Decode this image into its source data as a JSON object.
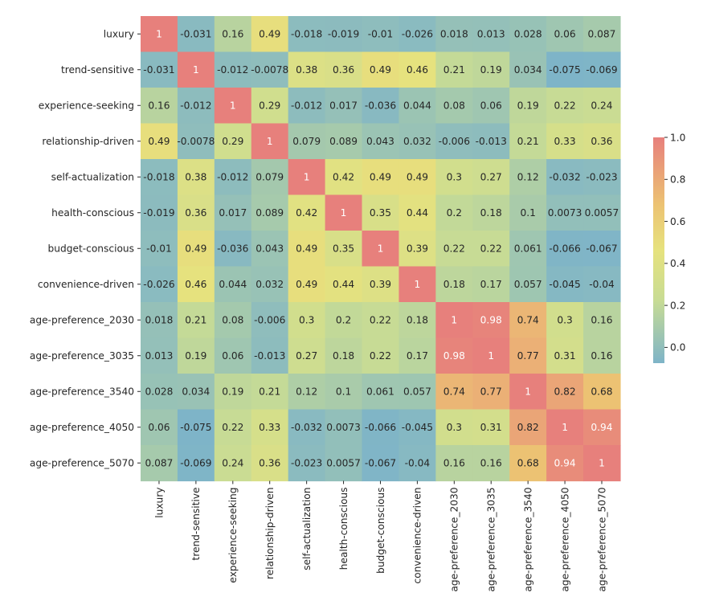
{
  "chart_data": {
    "type": "heatmap",
    "title": "",
    "xlabel": "",
    "ylabel": "",
    "rows": [
      "luxury",
      "trend-sensitive",
      "experience-seeking",
      "relationship-driven",
      "self-actualization",
      "health-conscious",
      "budget-conscious",
      "convenience-driven",
      "age-preference_2030",
      "age-preference_3035",
      "age-preference_3540",
      "age-preference_4050",
      "age-preference_5070"
    ],
    "columns": [
      "luxury",
      "trend-sensitive",
      "experience-seeking",
      "relationship-driven",
      "self-actualization",
      "health-conscious",
      "budget-conscious",
      "convenience-driven",
      "age-preference_2030",
      "age-preference_3035",
      "age-preference_3540",
      "age-preference_4050",
      "age-preference_5070"
    ],
    "values": [
      [
        1,
        -0.031,
        0.16,
        0.49,
        -0.018,
        -0.019,
        -0.01,
        -0.026,
        0.018,
        0.013,
        0.028,
        0.06,
        0.087
      ],
      [
        -0.031,
        1,
        -0.012,
        -0.0078,
        0.38,
        0.36,
        0.49,
        0.46,
        0.21,
        0.19,
        0.034,
        -0.075,
        -0.069
      ],
      [
        0.16,
        -0.012,
        1,
        0.29,
        -0.012,
        0.017,
        -0.036,
        0.044,
        0.08,
        0.06,
        0.19,
        0.22,
        0.24
      ],
      [
        0.49,
        -0.0078,
        0.29,
        1,
        0.079,
        0.089,
        0.043,
        0.032,
        -0.006,
        -0.013,
        0.21,
        0.33,
        0.36
      ],
      [
        -0.018,
        0.38,
        -0.012,
        0.079,
        1,
        0.42,
        0.49,
        0.49,
        0.3,
        0.27,
        0.12,
        -0.032,
        -0.023
      ],
      [
        -0.019,
        0.36,
        0.017,
        0.089,
        0.42,
        1,
        0.35,
        0.44,
        0.2,
        0.18,
        0.1,
        0.0073,
        0.0057
      ],
      [
        -0.01,
        0.49,
        -0.036,
        0.043,
        0.49,
        0.35,
        1,
        0.39,
        0.22,
        0.22,
        0.061,
        -0.066,
        -0.067
      ],
      [
        -0.026,
        0.46,
        0.044,
        0.032,
        0.49,
        0.44,
        0.39,
        1,
        0.18,
        0.17,
        0.057,
        -0.045,
        -0.04
      ],
      [
        0.018,
        0.21,
        0.08,
        -0.006,
        0.3,
        0.2,
        0.22,
        0.18,
        1,
        0.98,
        0.74,
        0.3,
        0.16
      ],
      [
        0.013,
        0.19,
        0.06,
        -0.013,
        0.27,
        0.18,
        0.22,
        0.17,
        0.98,
        1,
        0.77,
        0.31,
        0.16
      ],
      [
        0.028,
        0.034,
        0.19,
        0.21,
        0.12,
        0.1,
        0.061,
        0.057,
        0.74,
        0.77,
        1,
        0.82,
        0.68
      ],
      [
        0.06,
        -0.075,
        0.22,
        0.33,
        -0.032,
        0.0073,
        -0.066,
        -0.045,
        0.3,
        0.31,
        0.82,
        1,
        0.94
      ],
      [
        0.087,
        -0.069,
        0.24,
        0.36,
        -0.023,
        0.0057,
        -0.067,
        -0.04,
        0.16,
        0.16,
        0.68,
        0.94,
        1
      ]
    ],
    "labels": [
      [
        "1",
        "-0.031",
        "0.16",
        "0.49",
        "-0.018",
        "-0.019",
        "-0.01",
        "-0.026",
        "0.018",
        "0.013",
        "0.028",
        "0.06",
        "0.087"
      ],
      [
        "-0.031",
        "1",
        "-0.012",
        "-0.0078",
        "0.38",
        "0.36",
        "0.49",
        "0.46",
        "0.21",
        "0.19",
        "0.034",
        "-0.075",
        "-0.069"
      ],
      [
        "0.16",
        "-0.012",
        "1",
        "0.29",
        "-0.012",
        "0.017",
        "-0.036",
        "0.044",
        "0.08",
        "0.06",
        "0.19",
        "0.22",
        "0.24"
      ],
      [
        "0.49",
        "-0.0078",
        "0.29",
        "1",
        "0.079",
        "0.089",
        "0.043",
        "0.032",
        "-0.006",
        "-0.013",
        "0.21",
        "0.33",
        "0.36"
      ],
      [
        "-0.018",
        "0.38",
        "-0.012",
        "0.079",
        "1",
        "0.42",
        "0.49",
        "0.49",
        "0.3",
        "0.27",
        "0.12",
        "-0.032",
        "-0.023"
      ],
      [
        "-0.019",
        "0.36",
        "0.017",
        "0.089",
        "0.42",
        "1",
        "0.35",
        "0.44",
        "0.2",
        "0.18",
        "0.1",
        "0.0073",
        "0.0057"
      ],
      [
        "-0.01",
        "0.49",
        "-0.036",
        "0.043",
        "0.49",
        "0.35",
        "1",
        "0.39",
        "0.22",
        "0.22",
        "0.061",
        "-0.066",
        "-0.067"
      ],
      [
        "-0.026",
        "0.46",
        "0.044",
        "0.032",
        "0.49",
        "0.44",
        "0.39",
        "1",
        "0.18",
        "0.17",
        "0.057",
        "-0.045",
        "-0.04"
      ],
      [
        "0.018",
        "0.21",
        "0.08",
        "-0.006",
        "0.3",
        "0.2",
        "0.22",
        "0.18",
        "1",
        "0.98",
        "0.74",
        "0.3",
        "0.16"
      ],
      [
        "0.013",
        "0.19",
        "0.06",
        "-0.013",
        "0.27",
        "0.18",
        "0.22",
        "0.17",
        "0.98",
        "1",
        "0.77",
        "0.31",
        "0.16"
      ],
      [
        "0.028",
        "0.034",
        "0.19",
        "0.21",
        "0.12",
        "0.1",
        "0.061",
        "0.057",
        "0.74",
        "0.77",
        "1",
        "0.82",
        "0.68"
      ],
      [
        "0.06",
        "-0.075",
        "0.22",
        "0.33",
        "-0.032",
        "0.0073",
        "-0.066",
        "-0.045",
        "0.3",
        "0.31",
        "0.82",
        "1",
        "0.94"
      ],
      [
        "0.087",
        "-0.069",
        "0.24",
        "0.36",
        "-0.023",
        "0.0057",
        "-0.067",
        "-0.04",
        "0.16",
        "0.16",
        "0.68",
        "0.94",
        "1"
      ]
    ],
    "colorbar": {
      "ticks": [
        0.0,
        0.2,
        0.4,
        0.6,
        0.8,
        1.0
      ],
      "tick_labels": [
        "0.0",
        "0.2",
        "0.4",
        "0.6",
        "0.8",
        "1.0"
      ],
      "range": [
        -0.075,
        1.0
      ]
    },
    "colormap": [
      [
        0.0,
        "#7eb4c8"
      ],
      [
        0.28,
        "#c8dc94"
      ],
      [
        0.5,
        "#e6e27e"
      ],
      [
        0.7,
        "#ecc373"
      ],
      [
        1.0,
        "#e7807c"
      ]
    ],
    "text_colors": {
      "dark": "#262626",
      "light": "#ffffff"
    }
  }
}
